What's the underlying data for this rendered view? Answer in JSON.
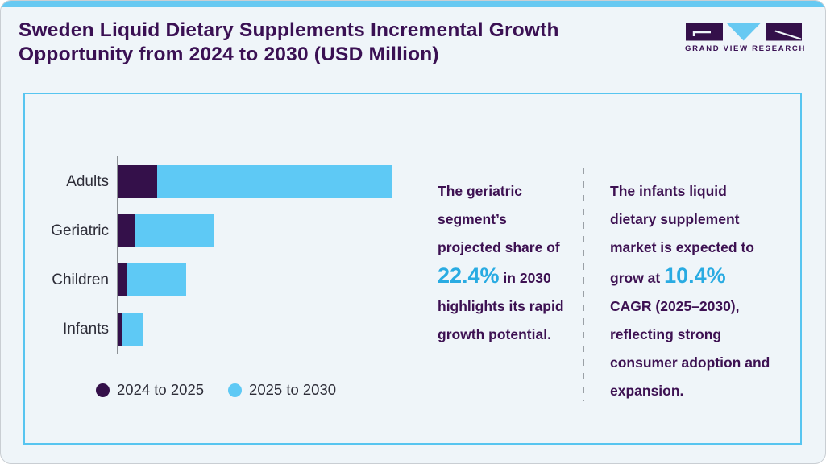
{
  "header": {
    "title": "Sweden Liquid Dietary Supplements Incremental Growth Opportunity from 2024 to 2030 (USD Million)",
    "logo_text": "GRAND VIEW RESEARCH"
  },
  "colors": {
    "topbar_blue": "#67C9F2",
    "card_border_blue": "#57C5F0",
    "title_purple": "#3A1053",
    "insight_text_purple": "#3D1152",
    "highlight_blue": "#29ABE2",
    "bar_dark_purple": "#34104A",
    "bar_light_blue": "#5EC9F5",
    "axis_gray": "#8D9296",
    "divider_gray": "#9AA0A6",
    "page_background": "#EFF5F9"
  },
  "chart_data": {
    "type": "bar",
    "orientation": "horizontal",
    "stacked": true,
    "title": "Sweden Liquid Dietary Supplements Incremental Growth Opportunity from 2024 to 2030 (USD Million)",
    "categories": [
      "Adults",
      "Geriatric",
      "Children",
      "Infants"
    ],
    "series": [
      {
        "name": "2024 to 2025",
        "color": "#34104A",
        "values": [
          48,
          21,
          10,
          5
        ]
      },
      {
        "name": "2025 to 2030",
        "color": "#5EC9F5",
        "values": [
          291,
          98,
          74,
          26
        ]
      }
    ],
    "xlabel": "",
    "ylabel": "",
    "axis_value_labels_visible": false,
    "units": "USD Million (axis unlabeled; values are relative estimates)",
    "legend_position": "bottom-left",
    "grid": false
  },
  "insights": [
    {
      "pre": "The geriatric segment’s projected share of ",
      "highlight": "22.4%",
      "post": " in 2030 highlights its rapid growth potential."
    },
    {
      "pre": "The infants liquid dietary supplement market is expected to grow at ",
      "highlight": "10.4%",
      "post": " CAGR (2025–2030), reflecting strong consumer adoption and expansion."
    }
  ]
}
